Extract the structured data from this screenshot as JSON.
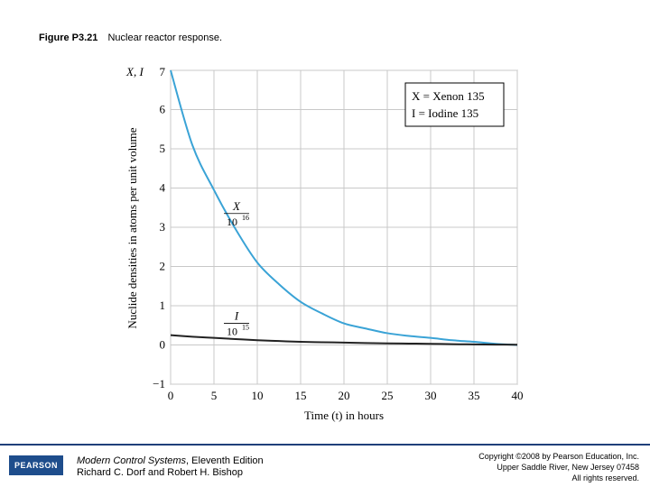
{
  "figure": {
    "number": "Figure P3.21",
    "caption": "Nuclear reactor response."
  },
  "chart_data": {
    "type": "line",
    "xlabel": "Time (t) in hours",
    "ylabel": "Nuclide densities in atoms per unit volume",
    "yaxis_top_label": "X, I",
    "xlim": [
      0,
      40
    ],
    "ylim": [
      -1,
      7
    ],
    "x_ticks": [
      "0",
      "5",
      "10",
      "15",
      "20",
      "25",
      "30",
      "35",
      "40"
    ],
    "y_ticks": [
      "−1",
      "0",
      "1",
      "2",
      "3",
      "4",
      "5",
      "6",
      "7"
    ],
    "grid": true,
    "x": [
      0,
      2.5,
      5,
      7.5,
      10,
      12.5,
      15,
      17.5,
      20,
      22.5,
      25,
      27.5,
      30,
      32.5,
      35,
      37.5,
      40
    ],
    "series": [
      {
        "color": "#3aa3d6",
        "values": [
          7.0,
          5.1,
          3.95,
          2.95,
          2.1,
          1.55,
          1.1,
          0.8,
          0.55,
          0.42,
          0.3,
          0.23,
          0.18,
          0.12,
          0.08,
          0.03,
          0.0
        ]
      },
      {
        "color": "#222222",
        "values": [
          0.25,
          0.21,
          0.18,
          0.15,
          0.12,
          0.1,
          0.08,
          0.07,
          0.06,
          0.05,
          0.04,
          0.035,
          0.03,
          0.02,
          0.015,
          0.01,
          0.005
        ]
      }
    ],
    "annotations": [
      {
        "num": "X",
        "den": "10",
        "exp": "16",
        "at": [
          7.5,
          3.35
        ]
      },
      {
        "num": "I",
        "den": "10",
        "exp": "15",
        "at": [
          7.5,
          0.55
        ]
      }
    ],
    "legend": {
      "placement": "top-right",
      "lines": [
        "X = Xenon 135",
        "I = Iodine 135"
      ]
    }
  },
  "footer": {
    "logo": "PEARSON",
    "book_title": "Modern Control Systems",
    "book_edition": ", Eleventh Edition",
    "authors": "Richard C. Dorf and Robert H. Bishop",
    "copyright_line1": "Copyright ©2008 by Pearson Education, Inc.",
    "copyright_line2": "Upper Saddle River, New Jersey 07458",
    "copyright_line3": "All rights reserved."
  }
}
